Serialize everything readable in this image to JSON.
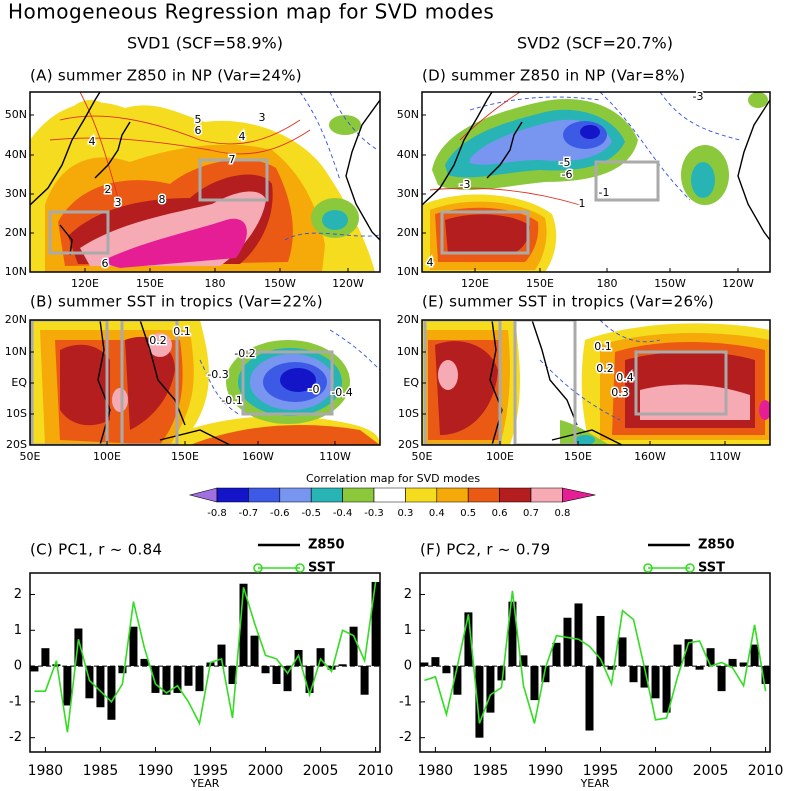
{
  "title": "Homogeneous Regression map for SVD modes",
  "columns": [
    "SVD1 (SCF=58.9%)",
    "SVD2 (SCF=20.7%)"
  ],
  "maps": [
    {
      "title": "(A) summer Z850 in NP (Var=24%)",
      "yticks": [
        "50N",
        "40N",
        "30N",
        "20N",
        "10N"
      ],
      "xticks": [
        "120E",
        "150E",
        "180",
        "150W",
        "120W"
      ],
      "contour_labels": [
        "4",
        "5",
        "6",
        "4",
        "3",
        "2",
        "3",
        "8",
        "7",
        "6"
      ]
    },
    {
      "title": "(B) summer SST in tropics (Var=22%)",
      "yticks": [
        "20N",
        "10N",
        "EQ",
        "10S",
        "20S"
      ],
      "xticks": [
        "50E",
        "100E",
        "150E",
        "160W",
        "110W"
      ],
      "contour_labels": [
        "0.1",
        "0.2",
        "-0.2",
        "-0.3",
        "-0.1",
        "-0",
        "-0.4"
      ]
    },
    {
      "title": "(D) summer Z850 in NP (Var=8%)",
      "yticks": [
        "50N",
        "40N",
        "30N",
        "20N",
        "10N"
      ],
      "xticks": [
        "120E",
        "150E",
        "180",
        "150W",
        "120W"
      ],
      "contour_labels": [
        "-3",
        "-5",
        "-6",
        "-3",
        "1",
        "-1",
        "4"
      ]
    },
    {
      "title": "(E) summer SST in tropics (Var=26%)",
      "yticks": [
        "20N",
        "10N",
        "EQ",
        "10S",
        "20S"
      ],
      "xticks": [
        "50E",
        "100E",
        "150E",
        "160W",
        "110W"
      ],
      "contour_labels": [
        "0.1",
        "0.2",
        "0.4",
        "0.3"
      ]
    }
  ],
  "colorbar": {
    "title": "Correlation map for SVD modes",
    "labels": [
      -0.8,
      -0.7,
      -0.6,
      -0.5,
      -0.4,
      -0.3,
      0.3,
      0.4,
      0.5,
      0.6,
      0.7,
      0.8
    ],
    "colors": [
      "#a070e0",
      "#1414c8",
      "#3c5ae6",
      "#7896f0",
      "#28b4b4",
      "#8cc83c",
      "#ffffff",
      "#f5dc1e",
      "#f5aa0a",
      "#eb5a14",
      "#b41e1e",
      "#f5aab4",
      "#e61e96"
    ]
  },
  "chart_data": [
    {
      "type": "bar",
      "title": "(C) PC1, r ~ 0.84",
      "xlabel": "YEAR",
      "x": [
        1979,
        1980,
        1981,
        1982,
        1983,
        1984,
        1985,
        1986,
        1987,
        1988,
        1989,
        1990,
        1991,
        1992,
        1993,
        1994,
        1995,
        1996,
        1997,
        1998,
        1999,
        2000,
        2001,
        2002,
        2003,
        2004,
        2005,
        2006,
        2007,
        2008,
        2009,
        2010
      ],
      "series": [
        {
          "name": "Z850",
          "type": "bar",
          "color": "#000000",
          "values": [
            -0.15,
            0.5,
            0.05,
            -1.1,
            1.05,
            -0.9,
            -1.15,
            -1.5,
            -0.2,
            1.1,
            0.2,
            -0.75,
            -0.8,
            -0.75,
            -0.55,
            -0.7,
            0.1,
            0.6,
            -0.5,
            2.3,
            0.85,
            -0.2,
            -0.5,
            -0.7,
            0.45,
            -0.75,
            0.5,
            -0.1,
            0.05,
            1.1,
            -0.8,
            2.35
          ]
        },
        {
          "name": "SST",
          "type": "line",
          "color": "#33dd22",
          "values": [
            -0.7,
            -0.7,
            0.15,
            -1.85,
            0.75,
            -0.4,
            -0.7,
            -1.0,
            -0.5,
            1.8,
            0.5,
            -0.5,
            -0.75,
            -0.55,
            -1.0,
            -1.6,
            0.1,
            0.2,
            -1.45,
            2.2,
            1.2,
            0.3,
            0.2,
            -0.2,
            0.3,
            -0.8,
            0.2,
            -0.15,
            1.0,
            0.85,
            0.15,
            2.35
          ]
        }
      ],
      "xlim": [
        1978.6,
        2010.4
      ],
      "xticks": [
        1980,
        1985,
        1990,
        1995,
        2000,
        2005,
        2010
      ],
      "ylim": [
        -2.4,
        2.6
      ],
      "yticks": [
        2,
        1,
        0,
        -1,
        -2
      ]
    },
    {
      "type": "bar",
      "title": "(F) PC2, r ~ 0.79",
      "xlabel": "YEAR",
      "x": [
        1979,
        1980,
        1981,
        1982,
        1983,
        1984,
        1985,
        1986,
        1987,
        1988,
        1989,
        1990,
        1991,
        1992,
        1993,
        1994,
        1995,
        1996,
        1997,
        1998,
        1999,
        2000,
        2001,
        2002,
        2003,
        2004,
        2005,
        2006,
        2007,
        2008,
        2009,
        2010
      ],
      "series": [
        {
          "name": "Z850",
          "type": "bar",
          "color": "#000000",
          "values": [
            0.1,
            0.25,
            -0.2,
            -0.8,
            1.5,
            -2.0,
            -1.3,
            -0.4,
            1.8,
            0.3,
            -0.95,
            -0.45,
            0.65,
            1.35,
            1.75,
            -1.8,
            1.4,
            -0.1,
            0.8,
            -0.45,
            -0.6,
            -0.9,
            -1.3,
            0.6,
            0.75,
            -0.1,
            0.5,
            -0.7,
            0.2,
            0.1,
            0.6,
            -0.5
          ]
        },
        {
          "name": "SST",
          "type": "line",
          "color": "#33dd22",
          "values": [
            -0.4,
            -0.3,
            -1.35,
            0.0,
            1.45,
            -1.6,
            -0.8,
            -0.6,
            2.1,
            -0.55,
            -1.6,
            -0.05,
            0.85,
            0.8,
            0.75,
            0.55,
            0.2,
            -0.5,
            1.55,
            1.3,
            -0.05,
            -1.5,
            -1.45,
            -0.3,
            0.65,
            0.7,
            0.0,
            0.1,
            -0.05,
            -0.55,
            1.15,
            -0.7
          ]
        }
      ],
      "xlim": [
        1978.6,
        2010.4
      ],
      "xticks": [
        1980,
        1985,
        1990,
        1995,
        2000,
        2005,
        2010
      ],
      "ylim": [
        -2.4,
        2.6
      ],
      "yticks": [
        2,
        1,
        0,
        -1,
        -2
      ]
    }
  ]
}
